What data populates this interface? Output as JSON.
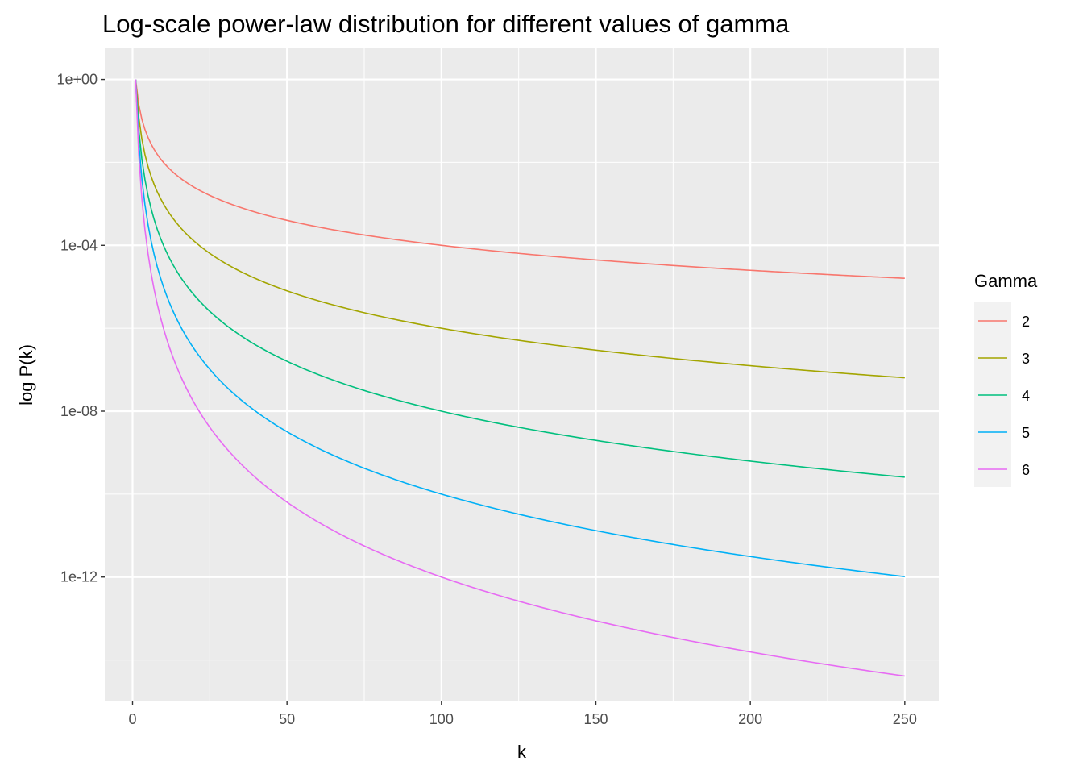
{
  "chart_data": {
    "type": "line",
    "title": "Log-scale power-law distribution for different values of gamma",
    "xlabel": "k",
    "ylabel": "log P(k)",
    "x_domain": [
      1,
      250
    ],
    "x_range_shown": [
      -9,
      261
    ],
    "x_ticks": [
      0,
      50,
      100,
      150,
      200,
      250
    ],
    "x_tick_labels": [
      "0",
      "50",
      "100",
      "150",
      "200",
      "250"
    ],
    "y_scale": "log10",
    "y_range_log10_shown": [
      -15.0,
      0.75
    ],
    "y_ticks_log10": [
      0,
      -4,
      -8,
      -12
    ],
    "y_tick_labels": [
      "1e+00",
      "1e-04",
      "1e-08",
      "1e-12"
    ],
    "function": "P(k) = k^(-gamma)",
    "grid": true,
    "panel_background": "#ebebeb",
    "legend": {
      "title": "Gamma",
      "position": "right",
      "entries": [
        "2",
        "3",
        "4",
        "5",
        "6"
      ]
    },
    "series": [
      {
        "name": "2",
        "gamma": 2,
        "color": "#F8766D"
      },
      {
        "name": "3",
        "gamma": 3,
        "color": "#A3A500"
      },
      {
        "name": "4",
        "gamma": 4,
        "color": "#00BF7D"
      },
      {
        "name": "5",
        "gamma": 5,
        "color": "#00B0F6"
      },
      {
        "name": "6",
        "gamma": 6,
        "color": "#E76BF3"
      }
    ]
  }
}
